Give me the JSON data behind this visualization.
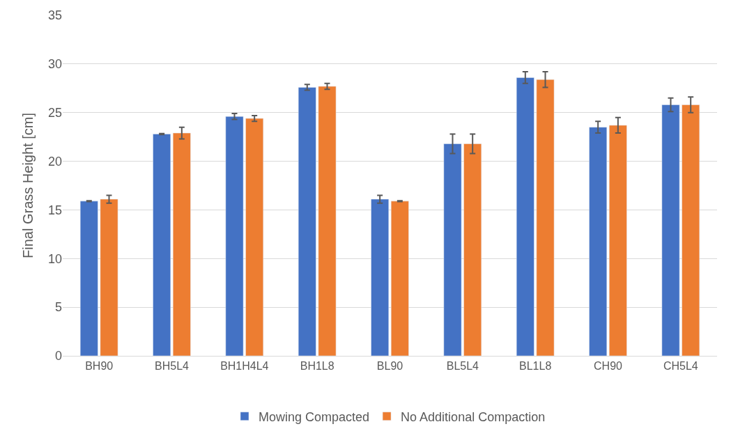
{
  "chart_data": {
    "type": "bar",
    "ylabel": "Final Grass Height [cm]",
    "categories": [
      "BH90",
      "BH5L4",
      "BH1H4L4",
      "BH1L8",
      "BL90",
      "BL5L4",
      "BL1L8",
      "CH90",
      "CH5L4"
    ],
    "series": [
      {
        "name": "Mowing Compacted",
        "color": "#4472c4",
        "values": [
          15.9,
          22.8,
          24.6,
          27.6,
          16.1,
          21.8,
          28.6,
          23.5,
          25.8
        ],
        "errors": [
          0.05,
          0.05,
          0.3,
          0.3,
          0.4,
          1.0,
          0.6,
          0.6,
          0.7
        ]
      },
      {
        "name": "No Additional Compaction",
        "color": "#ed7d31",
        "values": [
          16.1,
          22.9,
          24.4,
          27.7,
          15.9,
          21.8,
          28.4,
          23.7,
          25.8
        ],
        "errors": [
          0.4,
          0.6,
          0.3,
          0.3,
          0.05,
          1.0,
          0.8,
          0.8,
          0.8
        ]
      }
    ],
    "ylim": [
      0,
      35
    ],
    "yticks": [
      0,
      5,
      10,
      15,
      20,
      25,
      30,
      35
    ],
    "grid": "y",
    "legend": "bottom"
  }
}
